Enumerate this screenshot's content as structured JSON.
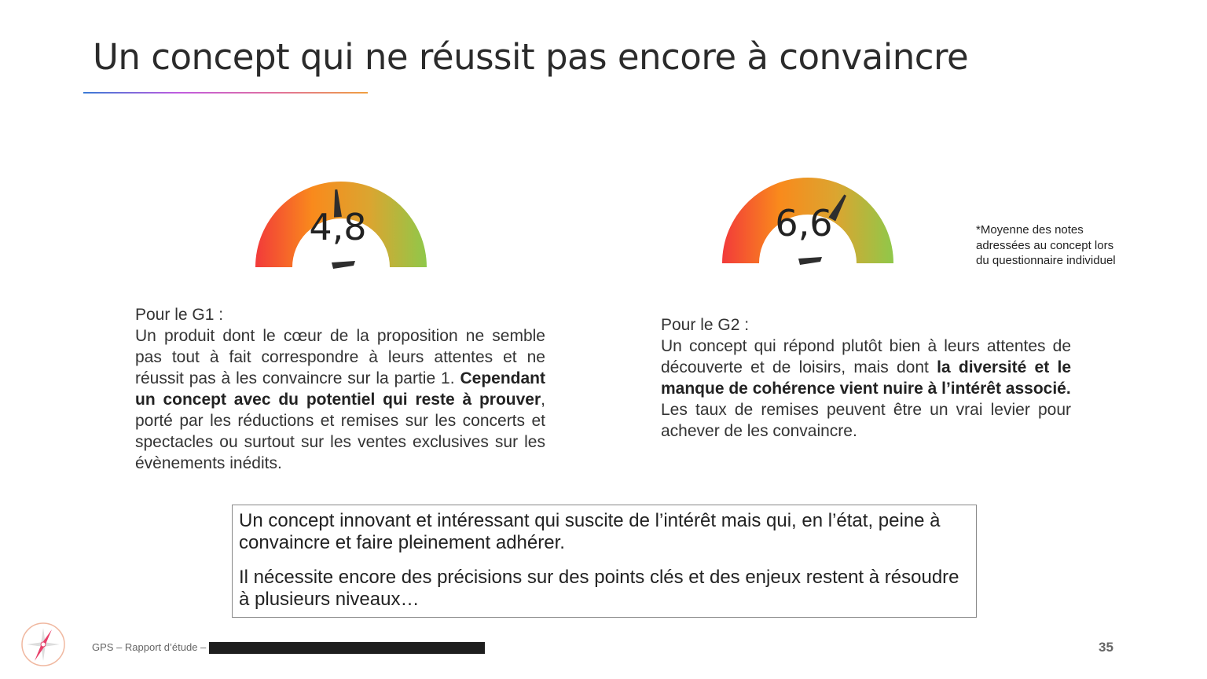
{
  "title": "Un concept qui ne réussit pas encore à convaincre",
  "gauges": [
    {
      "label": "4,8",
      "value": 4.8,
      "max": 10
    },
    {
      "label": "6,6",
      "value": 6.6,
      "max": 10
    }
  ],
  "gauge_colors": [
    "#f23a3a",
    "#f98a1c",
    "#dba530",
    "#8fc84a"
  ],
  "note": [
    "*Moyenne des notes",
    "adressées au concept lors",
    "du questionnaire individuel"
  ],
  "g1": {
    "heading": "Pour le G1 :",
    "segments": [
      {
        "t": "Un produit dont le cœur de la proposition ne semble pas tout à fait correspondre à leurs attentes et ne réussit pas à les convaincre sur la partie 1. ",
        "b": false
      },
      {
        "t": "Cependant un concept avec du potentiel qui reste à prouver",
        "b": true
      },
      {
        "t": ", porté par les réductions et remises sur les concerts et spectacles ou surtout sur les ventes exclusives sur les évènements inédits.",
        "b": false
      }
    ]
  },
  "g2": {
    "heading": "Pour le G2 :",
    "segments": [
      {
        "t": "Un concept qui répond plutôt bien à leurs attentes de découverte et de loisirs, mais dont ",
        "b": false
      },
      {
        "t": "la diversité et le manque de cohérence vient nuire à l’intérêt associé.",
        "b": true
      }
    ],
    "extra": "Les taux de remises peuvent être un vrai levier pour achever de les convaincre."
  },
  "conclusion": [
    "Un concept innovant et intéressant qui suscite de l’intérêt mais qui, en l’état, peine à convaincre et faire pleinement adhérer.",
    "Il nécessite encore des précisions sur des points clés et des enjeux restent à résoudre à plusieurs niveaux…"
  ],
  "footer": {
    "text": "GPS – Rapport d’étude –",
    "page": "35"
  }
}
